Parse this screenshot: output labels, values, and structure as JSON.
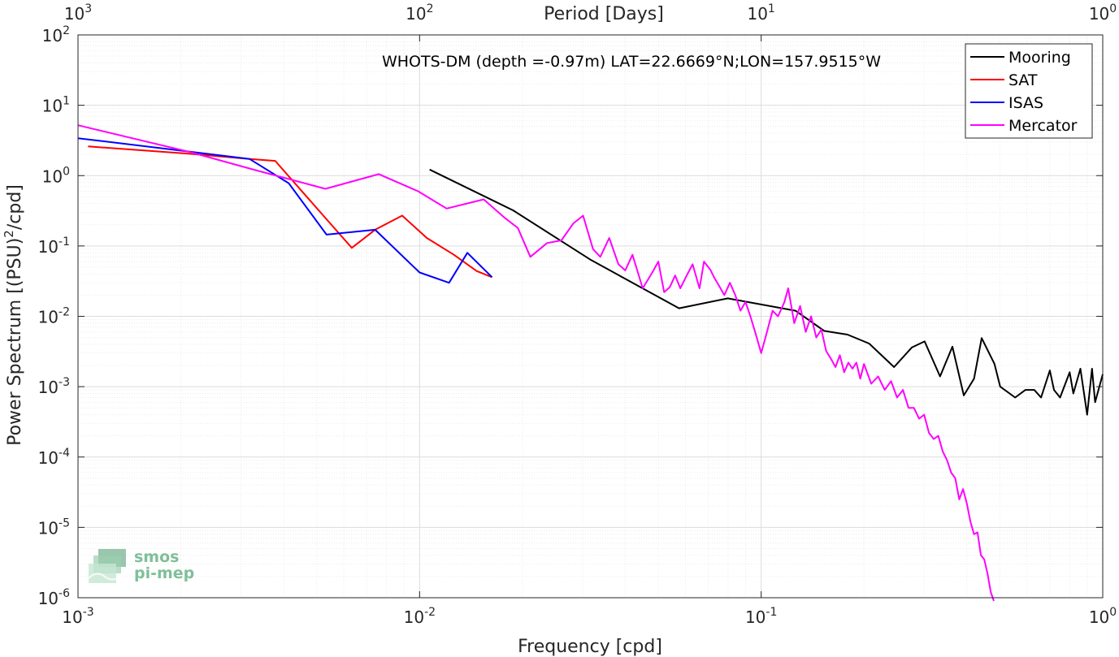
{
  "chart_data": {
    "type": "line",
    "title": "WHOTS-DM (depth =-0.97m) LAT=22.6669°N;LON=157.9515°W",
    "xlabel": "Frequency [cpd]",
    "ylabel": "Power Spectrum [(PSU)2/cpd]",
    "ylabel_parts": {
      "pre": "Power Spectrum [(PSU)",
      "sup": "2",
      "post": "/cpd]"
    },
    "top_xlabel": "Period [Days]",
    "xscale": "log",
    "yscale": "log",
    "xlim": [
      0.001,
      1
    ],
    "ylim": [
      1e-06,
      100
    ],
    "grid": true,
    "legend_position": "top-right",
    "x_ticks": [
      {
        "value": 0.001,
        "base": "10",
        "exp": "-3"
      },
      {
        "value": 0.01,
        "base": "10",
        "exp": "-2"
      },
      {
        "value": 0.1,
        "base": "10",
        "exp": "-1"
      },
      {
        "value": 1,
        "base": "10",
        "exp": "0"
      }
    ],
    "top_ticks": [
      {
        "value": 0.001,
        "base": "10",
        "exp": "3"
      },
      {
        "value": 0.01,
        "base": "10",
        "exp": "2"
      },
      {
        "value": 0.1,
        "base": "10",
        "exp": "1"
      },
      {
        "value": 1,
        "base": "10",
        "exp": "0"
      }
    ],
    "y_ticks": [
      {
        "value": 1e-06,
        "base": "10",
        "exp": "-6"
      },
      {
        "value": 1e-05,
        "base": "10",
        "exp": "-5"
      },
      {
        "value": 0.0001,
        "base": "10",
        "exp": "-4"
      },
      {
        "value": 0.001,
        "base": "10",
        "exp": "-3"
      },
      {
        "value": 0.01,
        "base": "10",
        "exp": "-2"
      },
      {
        "value": 0.1,
        "base": "10",
        "exp": "-1"
      },
      {
        "value": 1,
        "base": "10",
        "exp": "0"
      },
      {
        "value": 10,
        "base": "10",
        "exp": "1"
      },
      {
        "value": 100,
        "base": "10",
        "exp": "2"
      }
    ],
    "series": [
      {
        "name": "Mooring",
        "color": "#000000",
        "x": [
          0.0107,
          0.0188,
          0.0318,
          0.0575,
          0.0798,
          0.126,
          0.153,
          0.179,
          0.207,
          0.245,
          0.276,
          0.301,
          0.334,
          0.363,
          0.392,
          0.42,
          0.442,
          0.482,
          0.501,
          0.554,
          0.594,
          0.63,
          0.66,
          0.7,
          0.72,
          0.75,
          0.8,
          0.82,
          0.86,
          0.9,
          0.93,
          0.95,
          1.0
        ],
        "y": [
          1.22,
          0.32,
          0.063,
          0.013,
          0.018,
          0.012,
          0.0062,
          0.0055,
          0.0041,
          0.0019,
          0.0036,
          0.0044,
          0.0014,
          0.0037,
          0.00075,
          0.0013,
          0.0049,
          0.0021,
          0.001,
          0.0007,
          0.0009,
          0.0009,
          0.0007,
          0.0017,
          0.0009,
          0.0007,
          0.0016,
          0.0008,
          0.0018,
          0.0004,
          0.0018,
          0.0006,
          0.0015
        ]
      },
      {
        "name": "SAT",
        "color": "#ff0000",
        "x": [
          0.00107,
          0.00211,
          0.00318,
          0.00378,
          0.00526,
          0.00633,
          0.00741,
          0.00889,
          0.0105,
          0.0126,
          0.0147,
          0.0163
        ],
        "y": [
          2.6,
          2.05,
          1.72,
          1.62,
          0.26,
          0.094,
          0.17,
          0.27,
          0.13,
          0.075,
          0.044,
          0.036
        ]
      },
      {
        "name": "ISAS",
        "color": "#0000ff",
        "x": [
          0.001,
          0.00211,
          0.00318,
          0.00414,
          0.00534,
          0.00741,
          0.01,
          0.0122,
          0.0138,
          0.0163
        ],
        "y": [
          3.4,
          2.2,
          1.72,
          0.78,
          0.145,
          0.17,
          0.042,
          0.03,
          0.08,
          0.036
        ]
      },
      {
        "name": "Mercator",
        "color": "#ff00ff",
        "x": [
          0.001,
          0.0021,
          0.0033,
          0.0053,
          0.0076,
          0.0099,
          0.012,
          0.0154,
          0.0176,
          0.0194,
          0.0211,
          0.0236,
          0.026,
          0.0282,
          0.0301,
          0.0322,
          0.0338,
          0.0359,
          0.0382,
          0.04,
          0.042,
          0.045,
          0.048,
          0.05,
          0.052,
          0.054,
          0.056,
          0.058,
          0.06,
          0.063,
          0.066,
          0.068,
          0.071,
          0.073,
          0.075,
          0.078,
          0.081,
          0.084,
          0.087,
          0.09,
          0.093,
          0.096,
          0.1,
          0.104,
          0.108,
          0.112,
          0.117,
          0.12,
          0.125,
          0.13,
          0.135,
          0.14,
          0.145,
          0.15,
          0.155,
          0.16,
          0.165,
          0.17,
          0.175,
          0.18,
          0.185,
          0.19,
          0.195,
          0.2,
          0.21,
          0.22,
          0.23,
          0.24,
          0.25,
          0.26,
          0.27,
          0.28,
          0.29,
          0.3,
          0.31,
          0.32,
          0.33,
          0.34,
          0.35,
          0.36,
          0.37,
          0.38,
          0.39,
          0.4,
          0.41,
          0.42,
          0.43,
          0.44,
          0.45,
          0.46,
          0.47,
          0.48
        ],
        "y": [
          5.2,
          2.2,
          1.2,
          0.65,
          1.05,
          0.6,
          0.34,
          0.46,
          0.26,
          0.18,
          0.07,
          0.11,
          0.12,
          0.21,
          0.27,
          0.09,
          0.07,
          0.13,
          0.055,
          0.045,
          0.075,
          0.025,
          0.042,
          0.06,
          0.022,
          0.026,
          0.038,
          0.025,
          0.035,
          0.055,
          0.025,
          0.06,
          0.046,
          0.035,
          0.028,
          0.02,
          0.03,
          0.02,
          0.012,
          0.016,
          0.01,
          0.006,
          0.003,
          0.006,
          0.012,
          0.01,
          0.016,
          0.025,
          0.008,
          0.014,
          0.006,
          0.01,
          0.005,
          0.0065,
          0.0032,
          0.0025,
          0.0019,
          0.0028,
          0.0016,
          0.0022,
          0.0018,
          0.0022,
          0.0013,
          0.0021,
          0.0011,
          0.0014,
          0.0009,
          0.0012,
          0.0007,
          0.0009,
          0.0005,
          0.0005,
          0.00035,
          0.0004,
          0.00022,
          0.00018,
          0.0002,
          0.00012,
          9e-05,
          6e-05,
          5e-05,
          2.5e-05,
          3.5e-05,
          2.2e-05,
          1.2e-05,
          8e-06,
          8.5e-06,
          4e-06,
          3.5e-06,
          2.2e-06,
          1.2e-06,
          9e-07
        ]
      }
    ]
  },
  "logo": {
    "line1": "smos",
    "line2": "pi-mep"
  }
}
